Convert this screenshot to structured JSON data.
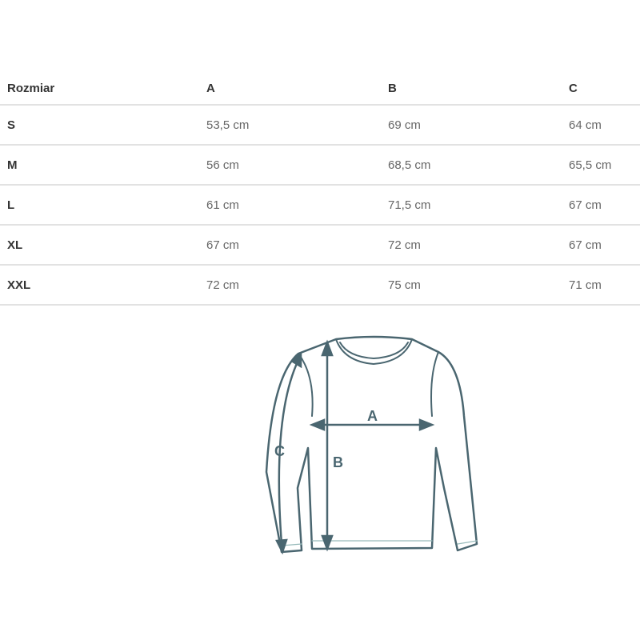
{
  "table": {
    "headers": [
      "Rozmiar",
      "A",
      "B",
      "C"
    ],
    "rows": [
      [
        "S",
        "53,5 cm",
        "69 cm",
        "64 cm"
      ],
      [
        "M",
        "56 cm",
        "68,5 cm",
        "65,5 cm"
      ],
      [
        "L",
        "61 cm",
        "71,5 cm",
        "67 cm"
      ],
      [
        "XL",
        "67 cm",
        "72 cm",
        "67 cm"
      ],
      [
        "XXL",
        "72 cm",
        "75 cm",
        "71 cm"
      ]
    ]
  },
  "diagram": {
    "labels": {
      "a": "A",
      "b": "B",
      "c": "C"
    },
    "line_color": "#4a6670"
  }
}
